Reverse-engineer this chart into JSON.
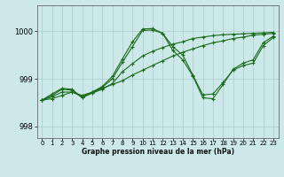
{
  "title": "Graphe pression niveau de la mer (hPa)",
  "background_color": "#cce8e8",
  "grid_color": "#aacaca",
  "line_color": "#1a6b1a",
  "xlim": [
    -0.5,
    23.5
  ],
  "ylim": [
    997.75,
    1000.55
  ],
  "yticks": [
    998,
    999,
    1000
  ],
  "xticks": [
    0,
    1,
    2,
    3,
    4,
    5,
    6,
    7,
    8,
    9,
    10,
    11,
    12,
    13,
    14,
    15,
    16,
    17,
    18,
    19,
    20,
    21,
    22,
    23
  ],
  "series": [
    [
      998.55,
      998.58,
      998.65,
      998.72,
      998.65,
      998.72,
      998.8,
      998.88,
      998.96,
      999.08,
      999.18,
      999.28,
      999.38,
      999.48,
      999.56,
      999.63,
      999.7,
      999.76,
      999.8,
      999.85,
      999.88,
      999.92,
      999.94,
      999.96
    ],
    [
      998.55,
      998.62,
      998.72,
      998.72,
      998.63,
      998.7,
      998.78,
      998.9,
      999.15,
      999.32,
      999.48,
      999.58,
      999.66,
      999.73,
      999.78,
      999.85,
      999.88,
      999.91,
      999.93,
      999.94,
      999.95,
      999.96,
      999.97,
      999.98
    ],
    [
      998.55,
      998.65,
      998.78,
      998.76,
      998.6,
      998.7,
      998.82,
      999.0,
      999.35,
      999.68,
      1000.02,
      1000.03,
      999.96,
      999.68,
      999.5,
      999.08,
      998.66,
      998.68,
      998.92,
      999.18,
      999.28,
      999.33,
      999.7,
      999.87
    ],
    [
      998.55,
      998.68,
      998.8,
      998.78,
      998.6,
      998.72,
      998.84,
      999.05,
      999.42,
      999.78,
      1000.05,
      1000.06,
      999.96,
      999.6,
      999.4,
      999.06,
      998.6,
      998.58,
      998.88,
      999.2,
      999.33,
      999.4,
      999.76,
      999.9
    ]
  ]
}
